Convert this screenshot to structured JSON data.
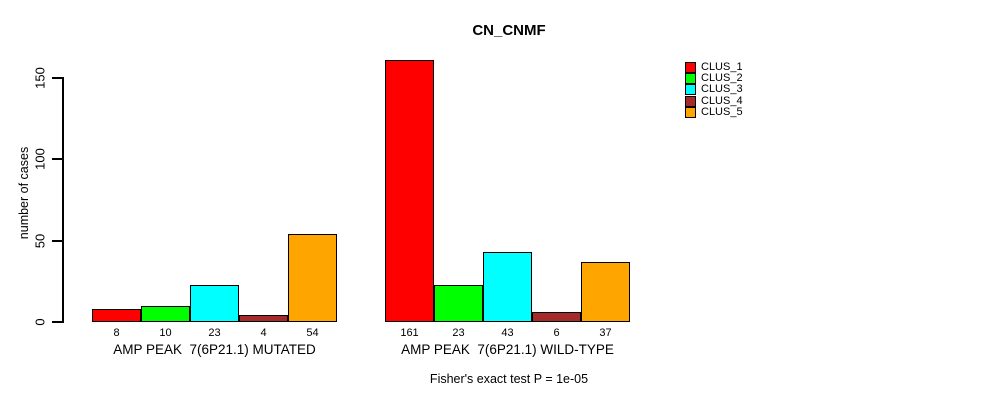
{
  "chart_data": {
    "type": "bar",
    "title": "CN_CNMF",
    "ylabel": "number of cases",
    "ylim": [
      0,
      165
    ],
    "yticks": [
      0,
      50,
      100,
      150
    ],
    "grid": false,
    "legend_position": "right",
    "categories": [
      "AMP PEAK  7(6P21.1) MUTATED",
      "AMP PEAK  7(6P21.1) WILD-TYPE"
    ],
    "series": [
      {
        "name": "CLUS_1",
        "color": "#ff0000",
        "values": [
          8,
          161
        ]
      },
      {
        "name": "CLUS_2",
        "color": "#00ff00",
        "values": [
          10,
          23
        ]
      },
      {
        "name": "CLUS_3",
        "color": "#00ffff",
        "values": [
          23,
          43
        ]
      },
      {
        "name": "CLUS_4",
        "color": "#a52a2a",
        "values": [
          4,
          6
        ]
      },
      {
        "name": "CLUS_5",
        "color": "#ffa500",
        "values": [
          54,
          37
        ]
      }
    ],
    "annotation": "Fisher's exact test P = 1e-05"
  }
}
